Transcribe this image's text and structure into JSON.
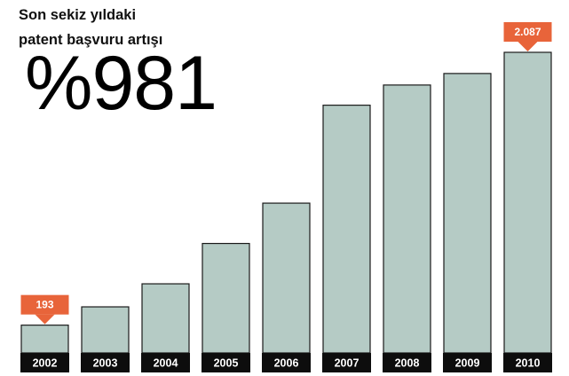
{
  "headline": {
    "line1": "Son sekiz yıldaki",
    "line2": "patent başvuru artışı",
    "big_number": "%981"
  },
  "chart_data": {
    "type": "bar",
    "categories": [
      "2002",
      "2003",
      "2004",
      "2005",
      "2006",
      "2007",
      "2008",
      "2009",
      "2010"
    ],
    "values": [
      193,
      320,
      480,
      760,
      1040,
      1720,
      1860,
      1940,
      2087
    ],
    "ylim": [
      0,
      2087
    ],
    "grid": false,
    "callouts": [
      {
        "category": "2002",
        "label": "193"
      },
      {
        "category": "2010",
        "label": "2.087"
      }
    ]
  },
  "colors": {
    "bar_fill": "#b5cbc5",
    "bar_stroke": "#1a1a1a",
    "label_bg": "#0d0d0d",
    "label_text": "#ffffff",
    "callout": "#e8643a"
  }
}
